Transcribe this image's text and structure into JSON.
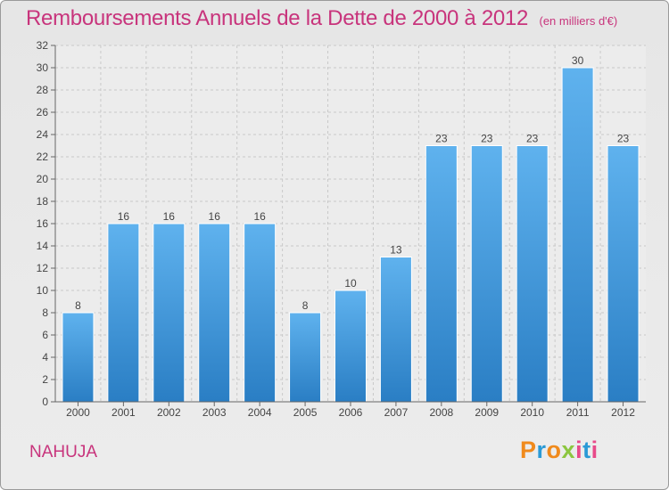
{
  "header": {
    "title": "Remboursements Annuels de la Dette de 2000 à 2012",
    "subtitle": "(en milliers d'€)"
  },
  "footer": {
    "commune": "NAHUJA",
    "brand": "Proxiti",
    "brand_colors": [
      "#f08a1c",
      "#2a9ad6",
      "#f08a1c",
      "#8cc63f",
      "#e84a8a",
      "#2a9ad6",
      "#e84a8a"
    ]
  },
  "chart_data": {
    "type": "bar",
    "categories": [
      "2000",
      "2001",
      "2002",
      "2003",
      "2004",
      "2005",
      "2006",
      "2007",
      "2008",
      "2009",
      "2010",
      "2011",
      "2012"
    ],
    "values": [
      8,
      16,
      16,
      16,
      16,
      8,
      10,
      13,
      23,
      23,
      23,
      30,
      23
    ],
    "title": "Remboursements Annuels de la Dette de 2000 à 2012",
    "xlabel": "",
    "ylabel": "",
    "ylim": [
      0,
      32
    ],
    "ytick_step": 2,
    "grid": true,
    "bar_color": "#3d8fd6"
  }
}
